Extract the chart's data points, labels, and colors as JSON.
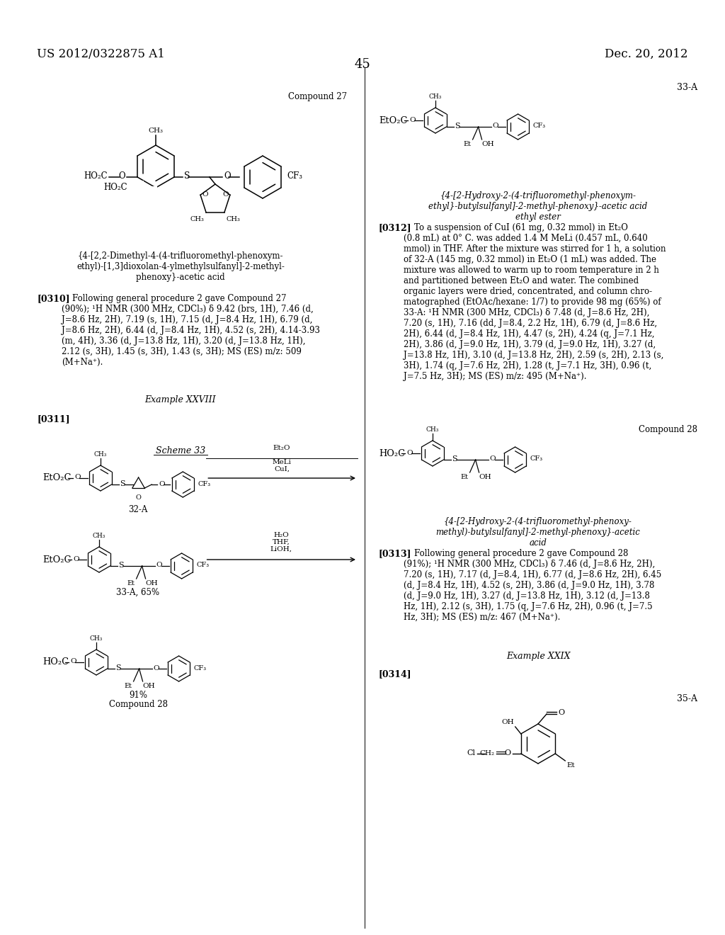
{
  "header_left": "US 2012/0322875 A1",
  "header_right": "Dec. 20, 2012",
  "page_number": "45",
  "background_color": "#ffffff",
  "compound27_label": "Compound 27",
  "compound27_name": "{4-[2,2-Dimethyl-4-(4-trifluoromethyl-phenoxym-\nethyl)-[1,3]dioxolan-4-ylmethylsulfanyl]-2-methyl-\nphenoxy}-acetic acid",
  "compound27_para_label": "[0310]",
  "compound27_para": "    Following general procedure 2 gave Compound 27\n(90%); ¹H NMR (300 MHz, CDCl₃) δ 9.42 (brs, 1H), 7.46 (d,\nJ=8.6 Hz, 2H), 7.19 (s, 1H), 7.15 (d, J=8.4 Hz, 1H), 6.79 (d,\nJ=8.6 Hz, 2H), 6.44 (d, J=8.4 Hz, 1H), 4.52 (s, 2H), 4.14-3.93\n(m, 4H), 3.36 (d, J=13.8 Hz, 1H), 3.20 (d, J=13.8 Hz, 1H),\n2.12 (s, 3H), 1.45 (s, 3H), 1.43 (s, 3H); MS (ES) m/z: 509\n(M+Na⁺).",
  "example28_label": "Example XXVIII",
  "para311_label": "[0311]",
  "scheme33_label": "Scheme 33",
  "struct_32A_label": "32-A",
  "struct_33A_65_label": "33-A, 65%",
  "struct_91_label": "91%",
  "struct_28_label": "Compound 28",
  "reagent1_line1": "CuI,",
  "reagent1_line2": "MeLi",
  "reagent1_line3": "Et₂O",
  "reagent2_line1": "LiOH,",
  "reagent2_line2": "THF,",
  "reagent2_line3": "H₂O",
  "struct_33A_top_label": "33-A",
  "compound28_label": "Compound 28",
  "para312_label": "[0312]",
  "para312_text": "    To a suspension of CuI (61 mg, 0.32 mmol) in Et₂O\n(0.8 mL) at 0° C. was added 1.4 M MeLi (0.457 mL, 0.640\nmmol) in THF. After the mixture was stirred for 1 h, a solution\nof 32-A (145 mg, 0.32 mmol) in Et₂O (1 mL) was added. The\nmixture was allowed to warm up to room temperature in 2 h\nand partitioned between Et₂O and water. The combined\norganic layers were dried, concentrated, and column chro-\nmatographed (EtOAc/hexane: 1/7) to provide 98 mg (65%) of\n33-A: ¹H NMR (300 MHz, CDCl₃) δ 7.48 (d, J=8.6 Hz, 2H),\n7.20 (s, 1H), 7.16 (dd, J=8.4, 2.2 Hz, 1H), 6.79 (d, J=8.6 Hz,\n2H), 6.44 (d, J=8.4 Hz, 1H), 4.47 (s, 2H), 4.24 (q, J=7.1 Hz,\n2H), 3.86 (d, J=9.0 Hz, 1H), 3.79 (d, J=9.0 Hz, 1H), 3.27 (d,\nJ=13.8 Hz, 1H), 3.10 (d, J=13.8 Hz, 2H), 2.59 (s, 2H), 2.13 (s,\n3H), 1.74 (q, J=7.6 Hz, 2H), 1.28 (t, J=7.1 Hz, 3H), 0.96 (t,\nJ=7.5 Hz, 3H); MS (ES) m/z: 495 (M+Na⁺).",
  "compound28_name_right": "{4-[2-Hydroxy-2-(4-trifluoromethyl-phenoxym-\nethyl}-butylsulfanyl]-2-methyl-phenoxy}-acetic acid\nethyl ester",
  "compound28r_name": "{4-[2-Hydroxy-2-(4-trifluoromethyl-phenoxy-\nmethyl)-butylsulfanyl]-2-methyl-phenoxy}-acetic\nacid",
  "para313_label": "[0313]",
  "para313_text": "    Following general procedure 2 gave Compound 28\n(91%); ¹H NMR (300 MHz, CDCl₃) δ 7.46 (d, J=8.6 Hz, 2H),\n7.20 (s, 1H), 7.17 (d, J=8.4, 1H), 6.77 (d, J=8.6 Hz, 2H), 6.45\n(d, J=8.4 Hz, 1H), 4.52 (s, 2H), 3.86 (d, J=9.0 Hz, 1H), 3.78\n(d, J=9.0 Hz, 1H), 3.27 (d, J=13.8 Hz, 1H), 3.12 (d, J=13.8\nHz, 1H), 2.12 (s, 3H), 1.75 (q, J=7.6 Hz, 2H), 0.96 (t, J=7.5\nHz, 3H); MS (ES) m/z: 467 (M+Na⁺).",
  "example29_label": "Example XXIX",
  "para314_label": "[0314]",
  "struct_35A_label": "35-A"
}
